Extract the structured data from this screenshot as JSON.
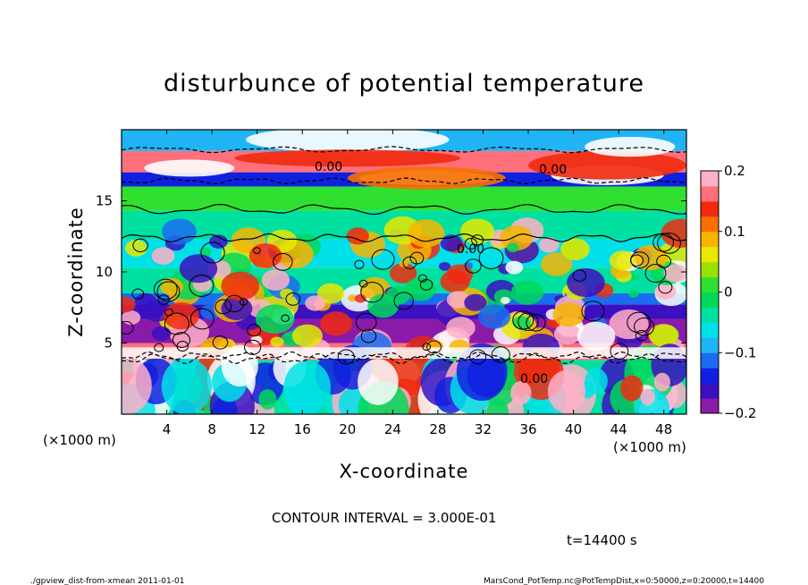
{
  "chart_data": {
    "type": "heatmap",
    "title": "disturbunce of potential temperature",
    "xlabel": "X-coordinate",
    "ylabel": "Z-coordinate",
    "x_unit_left": "(×1000 m)",
    "x_unit_right": "(×1000 m)",
    "xlim": [
      0,
      50
    ],
    "ylim": [
      0,
      20
    ],
    "x_ticks": [
      4,
      8,
      12,
      16,
      20,
      24,
      28,
      32,
      36,
      40,
      44,
      48
    ],
    "y_ticks": [
      5,
      10,
      15
    ],
    "colorbar": {
      "min": -0.2,
      "max": 0.2,
      "ticks": [
        0.2,
        0.1,
        0,
        -0.1,
        -0.2
      ],
      "tick_labels": [
        "0.2",
        "0.1",
        "0",
        "−0.1",
        "−0.2"
      ],
      "colors": [
        "#8a1aa8",
        "#3a10c0",
        "#1020e0",
        "#1a6cf0",
        "#20b4f4",
        "#00e0e8",
        "#00e0a0",
        "#00d85a",
        "#30e030",
        "#9ae000",
        "#e8e800",
        "#f8b400",
        "#f87000",
        "#f02a10",
        "#ff6f7c",
        "#ffb0c8"
      ]
    },
    "contour_labels": [
      "0.00",
      "0.00",
      "0.00",
      "0.00"
    ],
    "contour_interval_text": "CONTOUR INTERVAL = 3.000E-01",
    "time_text": "t=14400 s",
    "bands": [
      {
        "z": [
          18.5,
          20.0
        ],
        "value": -0.08
      },
      {
        "z": [
          17.0,
          18.5
        ],
        "value": 0.17
      },
      {
        "z": [
          16.0,
          17.0
        ],
        "value": -0.13
      },
      {
        "z": [
          14.3,
          16.0
        ],
        "value": 0.0
      },
      {
        "z": [
          12.3,
          14.3
        ],
        "value": -0.05
      },
      {
        "z": [
          10.3,
          12.3
        ],
        "value": -0.07
      },
      {
        "z": [
          8.5,
          10.3
        ],
        "value": -0.03
      },
      {
        "z": [
          7.7,
          8.5
        ],
        "value": -0.12
      },
      {
        "z": [
          6.7,
          7.7
        ],
        "value": -0.17
      },
      {
        "z": [
          5.0,
          6.7
        ],
        "value": -0.2
      },
      {
        "z": [
          3.8,
          5.0
        ],
        "value": 0.17
      },
      {
        "z": [
          0.0,
          3.8
        ],
        "value": -0.05
      }
    ]
  },
  "footer": {
    "left": "./gpview_dist-from-xmean  2011-01-01",
    "right": "MarsCond_PotTemp.nc@PotTempDist,x=0:50000,z=0:20000,t=14400"
  }
}
